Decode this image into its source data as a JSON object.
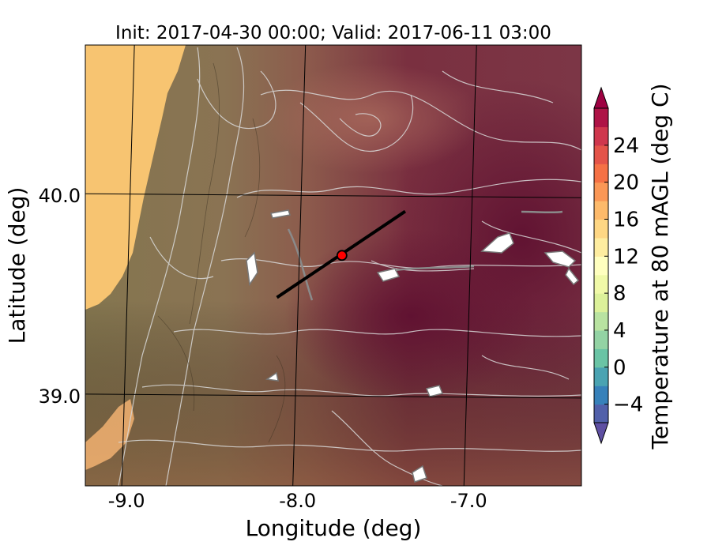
{
  "title": "Init: 2017-04-30 00:00; Valid: 2017-06-11 03:00",
  "map": {
    "xlabel": "Longitude (deg)",
    "ylabel": "Latitude (deg)",
    "xlim": [
      -9.25,
      -6.35
    ],
    "ylim": [
      38.55,
      40.75
    ],
    "x_ticks": [
      {
        "value": -9.0,
        "label": "-9.0"
      },
      {
        "value": -8.0,
        "label": "-8.0"
      },
      {
        "value": -7.0,
        "label": "-7.0"
      }
    ],
    "y_ticks": [
      {
        "value": 40.0,
        "label": "40.0"
      },
      {
        "value": 39.0,
        "label": "39.0"
      }
    ],
    "gridlines": true,
    "transect": {
      "start": [
        -8.13,
        39.49
      ],
      "end": [
        -7.38,
        39.92
      ],
      "color": "#000000"
    },
    "site_marker": {
      "lon": -7.75,
      "lat": 39.7,
      "color": "#ff0000"
    }
  },
  "colorbar": {
    "label": "Temperature at 80 mAGL (deg C)",
    "min": -6,
    "max": 28,
    "step": 2,
    "ticks": [
      {
        "value": -4,
        "label": "−4"
      },
      {
        "value": 0,
        "label": "0"
      },
      {
        "value": 4,
        "label": "4"
      },
      {
        "value": 8,
        "label": "8"
      },
      {
        "value": 12,
        "label": "12"
      },
      {
        "value": 16,
        "label": "16"
      },
      {
        "value": 20,
        "label": "20"
      },
      {
        "value": 24,
        "label": "24"
      }
    ],
    "extend": "both",
    "colormap": "Spectral_r"
  },
  "colors": {
    "ocean": "#f7c471",
    "land_west": "#87754f",
    "land_mid": "#8e6a4e",
    "hot_east": "#7a2a3e",
    "hot_core": "#6a1a38",
    "contour": "#d8d8d8"
  }
}
